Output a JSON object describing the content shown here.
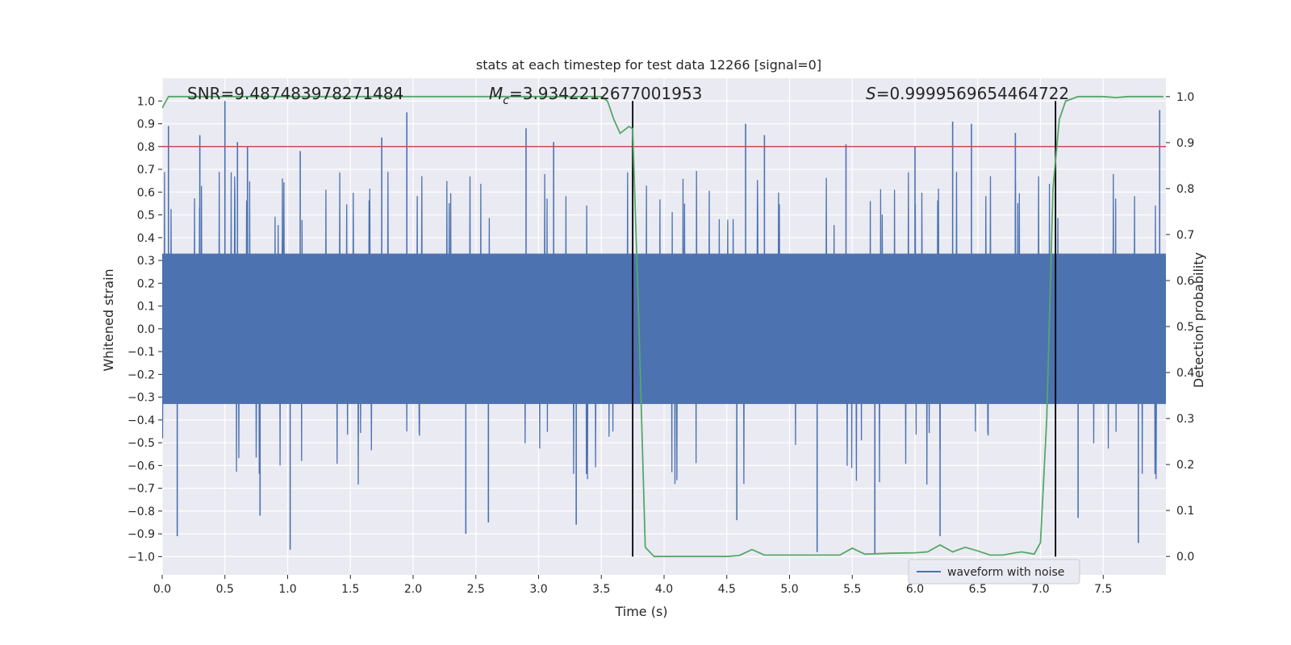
{
  "chart_data": {
    "type": "line",
    "title": "stats at each timestep for test data 12266 [signal=0]",
    "xlabel": "Time (s)",
    "ylabel_left": "Whitened strain",
    "ylabel_right": "Detection probability",
    "xlim": [
      0.0,
      8.0
    ],
    "ylim_left": [
      -1.08,
      1.1
    ],
    "ylim_right": [
      -0.04,
      1.04
    ],
    "xticks": [
      "0.0",
      "0.5",
      "1.0",
      "1.5",
      "2.0",
      "2.5",
      "3.0",
      "3.5",
      "4.0",
      "4.5",
      "5.0",
      "5.5",
      "6.0",
      "6.5",
      "7.0",
      "7.5"
    ],
    "yticks_left": [
      "1.0",
      "0.9",
      "0.8",
      "0.7",
      "0.6",
      "0.5",
      "0.4",
      "0.3",
      "0.2",
      "0.1",
      "0.0",
      "−0.1",
      "−0.2",
      "−0.3",
      "−0.4",
      "−0.5",
      "−0.6",
      "−0.7",
      "−0.8",
      "−0.9",
      "−1.0"
    ],
    "yticks_right": [
      "1.0",
      "0.9",
      "0.8",
      "0.7",
      "0.6",
      "0.5",
      "0.4",
      "0.3",
      "0.2",
      "0.1",
      "0.0"
    ],
    "grid": true,
    "legend": {
      "label": "waveform with noise",
      "position": "lower-right"
    },
    "annotations": {
      "snr": "SNR=9.487483978271484",
      "mc_symbol": "M",
      "mc_sub": "c",
      "mc_value": "=3.9342212677001953",
      "s_symbol": "S",
      "s_value": "=0.9999569654464722"
    },
    "threshold_left": 0.8,
    "vlines_time": [
      3.75,
      7.12
    ],
    "waveform_note": "dense noise series, amplitude envelope ~±0.4 with spikes up to ±1.0",
    "waveform_spikes": [
      {
        "t": 0.05,
        "v": 0.89
      },
      {
        "t": 0.12,
        "v": -0.91
      },
      {
        "t": 0.3,
        "v": 0.85
      },
      {
        "t": 0.5,
        "v": 1.0
      },
      {
        "t": 0.6,
        "v": 0.82
      },
      {
        "t": 0.68,
        "v": 0.8
      },
      {
        "t": 0.78,
        "v": -0.82
      },
      {
        "t": 1.02,
        "v": -0.97
      },
      {
        "t": 1.1,
        "v": 0.78
      },
      {
        "t": 1.75,
        "v": 0.84
      },
      {
        "t": 1.95,
        "v": 0.95
      },
      {
        "t": 2.42,
        "v": -0.9
      },
      {
        "t": 2.6,
        "v": -0.85
      },
      {
        "t": 2.9,
        "v": 0.88
      },
      {
        "t": 3.12,
        "v": 0.82
      },
      {
        "t": 3.3,
        "v": -0.86
      },
      {
        "t": 4.58,
        "v": -0.84
      },
      {
        "t": 4.65,
        "v": 0.9
      },
      {
        "t": 4.8,
        "v": 0.85
      },
      {
        "t": 5.22,
        "v": -0.98
      },
      {
        "t": 5.45,
        "v": 0.81
      },
      {
        "t": 5.68,
        "v": -0.99
      },
      {
        "t": 6.0,
        "v": 0.8
      },
      {
        "t": 6.2,
        "v": -0.91
      },
      {
        "t": 6.3,
        "v": 0.91
      },
      {
        "t": 6.45,
        "v": 0.9
      },
      {
        "t": 6.8,
        "v": 0.86
      },
      {
        "t": 7.3,
        "v": -0.83
      },
      {
        "t": 7.78,
        "v": -0.94
      },
      {
        "t": 7.95,
        "v": 0.96
      }
    ],
    "detection_probability": {
      "x": [
        0.0,
        0.05,
        0.1,
        0.5,
        1.0,
        1.5,
        2.0,
        2.5,
        3.0,
        3.5,
        3.55,
        3.6,
        3.65,
        3.72,
        3.75,
        3.8,
        3.85,
        3.92,
        4.0,
        4.1,
        4.3,
        4.5,
        4.6,
        4.7,
        4.8,
        5.0,
        5.2,
        5.4,
        5.5,
        5.6,
        5.8,
        6.0,
        6.1,
        6.2,
        6.3,
        6.4,
        6.5,
        6.6,
        6.7,
        6.8,
        6.85,
        6.95,
        7.0,
        7.05,
        7.1,
        7.15,
        7.2,
        7.3,
        7.5,
        7.6,
        7.7,
        7.98
      ],
      "y": [
        0.975,
        1.0,
        1.0,
        1.0,
        1.0,
        1.0,
        1.0,
        1.0,
        1.0,
        1.0,
        0.99,
        0.95,
        0.92,
        0.935,
        0.93,
        0.5,
        0.02,
        0.0,
        0.0,
        0.0,
        0.0,
        0.0,
        0.002,
        0.015,
        0.003,
        0.003,
        0.003,
        0.003,
        0.018,
        0.005,
        0.007,
        0.008,
        0.01,
        0.025,
        0.01,
        0.02,
        0.012,
        0.003,
        0.003,
        0.008,
        0.01,
        0.005,
        0.03,
        0.3,
        0.8,
        0.95,
        0.99,
        1.0,
        1.0,
        0.998,
        1.0,
        1.0
      ]
    },
    "colors": {
      "waveform": "#4c72b0",
      "probability": "#55a868",
      "threshold": "#c44e52",
      "vline": "#000000",
      "plot_bg": "#eaeaf2",
      "grid": "#ffffff"
    }
  }
}
